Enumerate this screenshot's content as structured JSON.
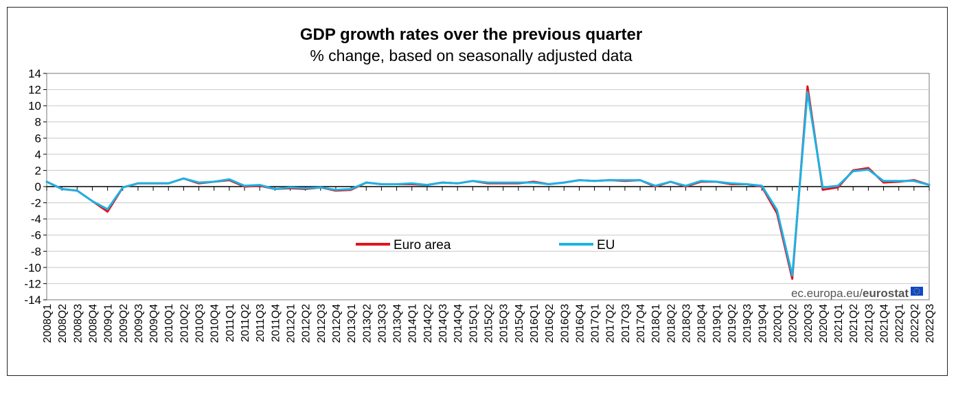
{
  "chart_data": {
    "type": "line",
    "title": "GDP growth rates over the previous quarter",
    "subtitle": "% change, based on seasonally adjusted data",
    "ylim": [
      -14,
      14
    ],
    "yticks": [
      14,
      12,
      10,
      8,
      6,
      4,
      2,
      0,
      -2,
      -4,
      -6,
      -8,
      -10,
      -12,
      -14
    ],
    "grid": true,
    "legend_position": "center",
    "source": "ec.europa.eu/",
    "source_brand": "eurostat",
    "categories": [
      "2008Q1",
      "2008Q2",
      "2008Q3",
      "2008Q4",
      "2009Q1",
      "2009Q2",
      "2009Q3",
      "2009Q4",
      "2010Q1",
      "2010Q2",
      "2010Q3",
      "2010Q4",
      "2011Q1",
      "2011Q2",
      "2011Q3",
      "2011Q4",
      "2012Q1",
      "2012Q2",
      "2012Q3",
      "2012Q4",
      "2013Q1",
      "2013Q2",
      "2013Q3",
      "2013Q4",
      "2014Q1",
      "2014Q2",
      "2014Q3",
      "2014Q4",
      "2015Q1",
      "2015Q2",
      "2015Q3",
      "2015Q4",
      "2016Q1",
      "2016Q2",
      "2016Q3",
      "2016Q4",
      "2017Q1",
      "2017Q2",
      "2017Q3",
      "2017Q4",
      "2018Q1",
      "2018Q2",
      "2018Q3",
      "2018Q4",
      "2019Q1",
      "2019Q2",
      "2019Q3",
      "2019Q4",
      "2020Q1",
      "2020Q2",
      "2020Q3",
      "2020Q4",
      "2021Q1",
      "2021Q2",
      "2021Q3",
      "2021Q4",
      "2022Q1",
      "2022Q2",
      "2022Q3"
    ],
    "series": [
      {
        "name": "Euro area",
        "color": "#e3121b",
        "values": [
          0.6,
          -0.3,
          -0.5,
          -1.8,
          -3.1,
          -0.1,
          0.4,
          0.4,
          0.4,
          1.0,
          0.4,
          0.6,
          0.8,
          0.0,
          0.1,
          -0.3,
          -0.2,
          -0.3,
          -0.1,
          -0.5,
          -0.4,
          0.5,
          0.3,
          0.3,
          0.3,
          0.2,
          0.5,
          0.4,
          0.7,
          0.4,
          0.4,
          0.4,
          0.6,
          0.3,
          0.5,
          0.8,
          0.7,
          0.8,
          0.7,
          0.8,
          0.0,
          0.6,
          0.0,
          0.6,
          0.6,
          0.3,
          0.3,
          0.0,
          -3.3,
          -11.4,
          12.4,
          -0.4,
          -0.1,
          2.0,
          2.3,
          0.5,
          0.6,
          0.8,
          0.2
        ]
      },
      {
        "name": "EU",
        "color": "#1ab3e6",
        "values": [
          0.6,
          -0.3,
          -0.5,
          -1.8,
          -2.8,
          -0.1,
          0.4,
          0.4,
          0.4,
          1.0,
          0.5,
          0.6,
          0.9,
          0.1,
          0.2,
          -0.3,
          -0.1,
          -0.2,
          -0.1,
          -0.4,
          -0.3,
          0.5,
          0.3,
          0.3,
          0.4,
          0.2,
          0.5,
          0.4,
          0.7,
          0.5,
          0.5,
          0.5,
          0.5,
          0.3,
          0.5,
          0.8,
          0.7,
          0.8,
          0.8,
          0.8,
          0.1,
          0.6,
          0.1,
          0.7,
          0.6,
          0.4,
          0.3,
          0.1,
          -2.9,
          -11.0,
          11.7,
          -0.1,
          0.1,
          1.9,
          2.1,
          0.7,
          0.7,
          0.7,
          0.2
        ]
      }
    ]
  }
}
